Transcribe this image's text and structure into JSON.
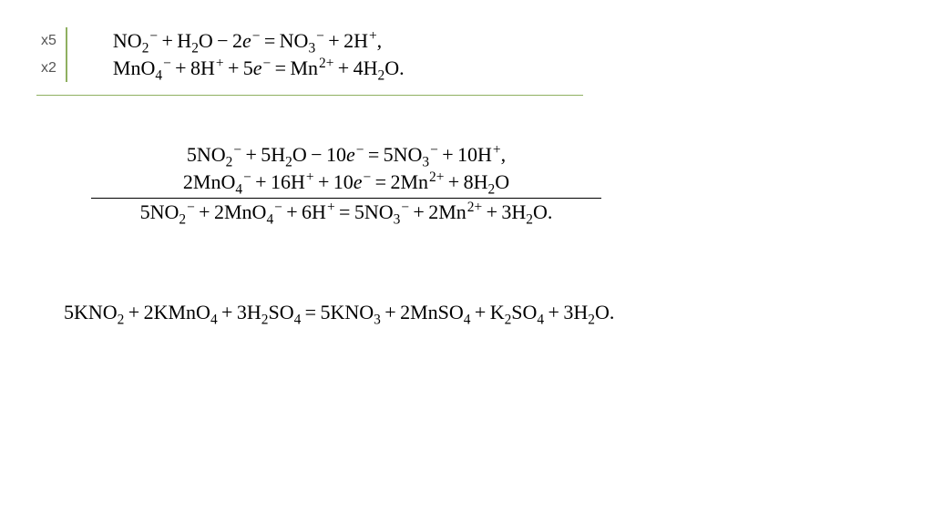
{
  "multipliers": {
    "line1": "x5",
    "line2": "x2"
  },
  "half": {
    "eq1": {
      "lhs": [
        {
          "t": "NO",
          "sub": "2",
          "sup": "−"
        },
        {
          "op": "+"
        },
        {
          "t": "H",
          "sub": "2"
        },
        {
          "t": "O"
        },
        {
          "op": "−"
        },
        {
          "t": "2"
        },
        {
          "t": "e",
          "sup": "−",
          "it": true
        }
      ],
      "rhs": [
        {
          "t": "NO",
          "sub": "3",
          "sup": "−"
        },
        {
          "op": "+"
        },
        {
          "t": "2H",
          "sup": "+"
        },
        {
          "t": ","
        }
      ]
    },
    "eq2": {
      "lhs": [
        {
          "t": "MnO",
          "sub": "4",
          "sup": "−"
        },
        {
          "op": "+"
        },
        {
          "t": "8H",
          "sup": "+"
        },
        {
          "op": "+"
        },
        {
          "t": "5"
        },
        {
          "t": "e",
          "sup": "−",
          "it": true
        }
      ],
      "rhs": [
        {
          "t": "Mn",
          "sup": "2+"
        },
        {
          "op": "+"
        },
        {
          "t": "4H",
          "sub": "2"
        },
        {
          "t": "O."
        }
      ]
    }
  },
  "summed": {
    "eq1": {
      "lhs": [
        {
          "t": "5NO",
          "sub": "2",
          "sup": "−"
        },
        {
          "op": "+"
        },
        {
          "t": "5H",
          "sub": "2"
        },
        {
          "t": "O"
        },
        {
          "op": "−"
        },
        {
          "t": "10"
        },
        {
          "t": "e",
          "sup": "−",
          "it": true
        }
      ],
      "rhs": [
        {
          "t": "5NO",
          "sub": "3",
          "sup": "−"
        },
        {
          "op": "+"
        },
        {
          "t": "10H",
          "sup": "+"
        },
        {
          "t": ","
        }
      ]
    },
    "eq2": {
      "lhs": [
        {
          "t": "2MnO",
          "sub": "4",
          "sup": "−"
        },
        {
          "op": "+"
        },
        {
          "t": "16H",
          "sup": "+"
        },
        {
          "op": "+"
        },
        {
          "t": "10"
        },
        {
          "t": "e",
          "sup": "−",
          "it": true
        }
      ],
      "rhs": [
        {
          "t": "2Mn",
          "sup": "2+"
        },
        {
          "op": "+"
        },
        {
          "t": "8H",
          "sub": "2"
        },
        {
          "t": "O"
        }
      ]
    },
    "net": {
      "lhs": [
        {
          "t": "5NO",
          "sub": "2",
          "sup": "−"
        },
        {
          "op": "+"
        },
        {
          "t": "2MnO",
          "sub": "4",
          "sup": "−"
        },
        {
          "op": "+"
        },
        {
          "t": "6H",
          "sup": "+"
        }
      ],
      "rhs": [
        {
          "t": "5NO",
          "sub": "3",
          "sup": "−"
        },
        {
          "op": "+"
        },
        {
          "t": "2Mn",
          "sup": "2+"
        },
        {
          "op": "+"
        },
        {
          "t": "3H",
          "sub": "2"
        },
        {
          "t": "O."
        }
      ]
    }
  },
  "final": {
    "lhs": [
      {
        "t": "5KNO",
        "sub": "2"
      },
      {
        "op": "+"
      },
      {
        "t": "2KMnO",
        "sub": "4"
      },
      {
        "op": "+"
      },
      {
        "t": "3H",
        "sub": "2"
      },
      {
        "t": "SO",
        "sub": "4"
      }
    ],
    "rhs": [
      {
        "t": "5KNO",
        "sub": "3"
      },
      {
        "op": "+"
      },
      {
        "t": "2MnSO",
        "sub": "4"
      },
      {
        "op": "+"
      },
      {
        "t": "K",
        "sub": "2"
      },
      {
        "t": "SO",
        "sub": "4"
      },
      {
        "op": "+"
      },
      {
        "t": "3H",
        "sub": "2"
      },
      {
        "t": "O."
      }
    ]
  },
  "colors": {
    "accent": "#8fb060",
    "text": "#000000",
    "muted": "#555555",
    "bg": "#ffffff"
  },
  "dots": ". . . . . ."
}
